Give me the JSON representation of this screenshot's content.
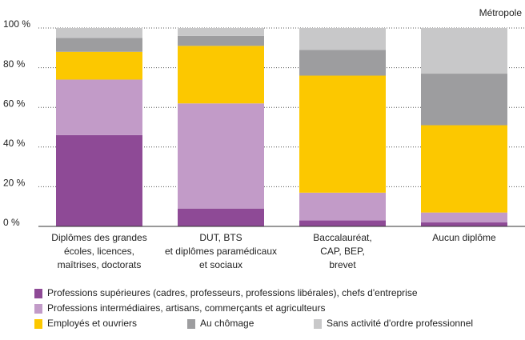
{
  "chart_data": {
    "type": "stacked_bar",
    "annotation": "Métropole",
    "categories": [
      [
        "Diplômes des grandes",
        "écoles, licences,",
        "maîtrises, doctorats"
      ],
      [
        "DUT, BTS",
        "et diplômes paramédicaux",
        "et sociaux"
      ],
      [
        "Baccalauréat,",
        "CAP, BEP,",
        "brevet"
      ],
      [
        "Aucun diplôme"
      ]
    ],
    "series": [
      {
        "name": "Professions supérieures (cadres, professeurs, professions libérales), chefs d'entreprise",
        "color": "#8e4a96",
        "values": [
          46,
          9,
          3,
          2
        ]
      },
      {
        "name": "Professions intermédiaires, artisans, commerçants et agriculteurs",
        "color": "#c29bc8",
        "values": [
          28,
          53,
          14,
          5
        ]
      },
      {
        "name": "Employés et ouvriers",
        "color": "#fcc800",
        "values": [
          14,
          29,
          59,
          44
        ]
      },
      {
        "name": "Au chômage",
        "color": "#9d9d9f",
        "values": [
          7,
          5,
          13,
          26
        ]
      },
      {
        "name": "Sans activité d'ordre professionnel",
        "color": "#c8c8c9",
        "values": [
          5,
          4,
          11,
          23
        ]
      }
    ],
    "ylim": [
      0,
      100
    ],
    "yticks": [
      {
        "value": 0,
        "label": "0 %"
      },
      {
        "value": 20,
        "label": "20 %"
      },
      {
        "value": 40,
        "label": "40 %"
      },
      {
        "value": 60,
        "label": "60 %"
      },
      {
        "value": 80,
        "label": "80 %"
      },
      {
        "value": 100,
        "label": "100 %"
      }
    ],
    "grid": true
  }
}
